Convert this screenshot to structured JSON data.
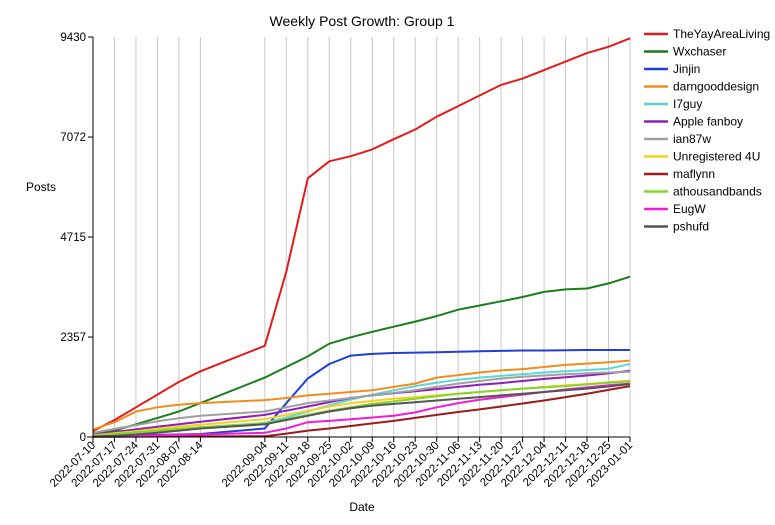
{
  "chart_data": {
    "type": "line",
    "title": "Weekly Post Growth: Group 1",
    "xlabel": "Date",
    "ylabel": "Posts",
    "x": [
      "2022-07-10",
      "2022-07-17",
      "2022-07-24",
      "2022-07-31",
      "2022-08-07",
      "2022-08-14",
      "2022-09-04",
      "2022-09-11",
      "2022-09-18",
      "2022-09-25",
      "2022-10-02",
      "2022-10-09",
      "2022-10-16",
      "2022-10-23",
      "2022-10-30",
      "2022-11-06",
      "2022-11-13",
      "2022-11-20",
      "2022-11-27",
      "2022-12-04",
      "2022-12-11",
      "2022-12-18",
      "2022-12-25",
      "2023-01-01"
    ],
    "yticks": [
      0,
      2357,
      4715,
      7072,
      9430
    ],
    "ylim": [
      0,
      9430
    ],
    "grid": "vertical",
    "legend": "right",
    "series": [
      {
        "name": "TheYayAreaLiving",
        "color": "#e41a1c",
        "values": [
          140,
          400,
          700,
          1000,
          1300,
          1550,
          2150,
          3900,
          6100,
          6500,
          6620,
          6780,
          7020,
          7250,
          7550,
          7800,
          8050,
          8300,
          8450,
          8650,
          8850,
          9050,
          9200,
          9400
        ]
      },
      {
        "name": "Wxchaser",
        "color": "#1a7f1a",
        "values": [
          80,
          150,
          300,
          450,
          600,
          800,
          1400,
          1650,
          1900,
          2200,
          2350,
          2480,
          2600,
          2720,
          2850,
          3000,
          3100,
          3200,
          3300,
          3420,
          3480,
          3500,
          3620,
          3780
        ]
      },
      {
        "name": "Jinjin",
        "color": "#1f3fd6",
        "values": [
          20,
          30,
          40,
          50,
          60,
          70,
          200,
          800,
          1380,
          1720,
          1920,
          1960,
          1980,
          1990,
          2000,
          2010,
          2020,
          2030,
          2040,
          2040,
          2045,
          2050,
          2050,
          2050
        ]
      },
      {
        "name": "darngooddesign",
        "color": "#f28c1c",
        "values": [
          180,
          350,
          600,
          700,
          760,
          800,
          870,
          920,
          980,
          1020,
          1060,
          1100,
          1180,
          1260,
          1400,
          1460,
          1520,
          1570,
          1600,
          1650,
          1700,
          1730,
          1760,
          1800
        ]
      },
      {
        "name": "I7guy",
        "color": "#5fd6d6",
        "values": [
          30,
          60,
          100,
          140,
          180,
          230,
          330,
          460,
          600,
          750,
          880,
          1000,
          1100,
          1200,
          1280,
          1350,
          1400,
          1440,
          1480,
          1520,
          1550,
          1580,
          1610,
          1720
        ]
      },
      {
        "name": "Apple fanboy",
        "color": "#8e1cc1",
        "values": [
          60,
          120,
          180,
          240,
          300,
          360,
          520,
          620,
          720,
          820,
          920,
          980,
          1030,
          1080,
          1130,
          1180,
          1230,
          1270,
          1320,
          1370,
          1410,
          1450,
          1500,
          1560
        ]
      },
      {
        "name": "ian87w",
        "color": "#a0a0a0",
        "values": [
          100,
          190,
          280,
          370,
          440,
          500,
          600,
          700,
          800,
          860,
          920,
          980,
          1040,
          1100,
          1180,
          1260,
          1320,
          1380,
          1420,
          1450,
          1480,
          1500,
          1520,
          1540
        ]
      },
      {
        "name": "Unregistered 4U",
        "color": "#f2d21c",
        "values": [
          40,
          90,
          140,
          190,
          240,
          290,
          420,
          520,
          620,
          720,
          800,
          850,
          900,
          940,
          980,
          1020,
          1060,
          1100,
          1140,
          1180,
          1220,
          1250,
          1290,
          1330
        ]
      },
      {
        "name": "maflynn",
        "color": "#9b1b1b",
        "values": [
          5,
          8,
          10,
          12,
          14,
          15,
          20,
          80,
          150,
          200,
          260,
          320,
          380,
          450,
          520,
          590,
          650,
          720,
          790,
          860,
          940,
          1020,
          1110,
          1200
        ]
      },
      {
        "name": "athousandbands",
        "color": "#86d62a",
        "values": [
          30,
          70,
          110,
          150,
          190,
          230,
          320,
          420,
          520,
          620,
          700,
          780,
          840,
          900,
          960,
          1020,
          1060,
          1100,
          1140,
          1170,
          1200,
          1240,
          1280,
          1310
        ]
      },
      {
        "name": "EugW",
        "color": "#f21cd6",
        "values": [
          10,
          20,
          30,
          40,
          50,
          60,
          100,
          200,
          350,
          380,
          420,
          460,
          500,
          580,
          700,
          800,
          880,
          940,
          1000,
          1060,
          1120,
          1170,
          1220,
          1260
        ]
      },
      {
        "name": "pshufd",
        "color": "#555555",
        "values": [
          10,
          30,
          60,
          100,
          150,
          200,
          300,
          400,
          500,
          600,
          680,
          740,
          780,
          820,
          860,
          900,
          940,
          980,
          1020,
          1060,
          1100,
          1140,
          1190,
          1250
        ]
      }
    ]
  }
}
